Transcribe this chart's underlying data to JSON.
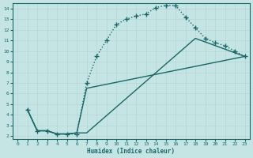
{
  "xlabel": "Humidex (Indice chaleur)",
  "bg_color": "#c5e5e5",
  "line_color": "#1a6666",
  "grid_color": "#b8d8d8",
  "xlim": [
    -0.5,
    23.5
  ],
  "ylim": [
    1.7,
    14.5
  ],
  "xticks": [
    0,
    1,
    2,
    3,
    4,
    5,
    6,
    7,
    8,
    9,
    10,
    11,
    12,
    13,
    14,
    15,
    16,
    17,
    18,
    19,
    20,
    21,
    22,
    23
  ],
  "yticks": [
    2,
    3,
    4,
    5,
    6,
    7,
    8,
    9,
    10,
    11,
    12,
    13,
    14
  ],
  "dotted_x": [
    1,
    2,
    3,
    4,
    5,
    6,
    7,
    8,
    9,
    10,
    11,
    12,
    13,
    14,
    15,
    16,
    17,
    18,
    19,
    20,
    21,
    22,
    23
  ],
  "dotted_y": [
    4.5,
    2.5,
    2.5,
    2.2,
    2.2,
    2.2,
    7.0,
    9.5,
    11.0,
    12.5,
    13.0,
    13.3,
    13.5,
    14.1,
    14.3,
    14.3,
    13.2,
    12.2,
    11.2,
    10.8,
    10.5,
    10.0,
    9.5
  ],
  "solid1_x": [
    1,
    2,
    3,
    4,
    5,
    6,
    7,
    18,
    23
  ],
  "solid1_y": [
    4.5,
    2.5,
    2.5,
    2.2,
    2.2,
    2.3,
    2.3,
    11.2,
    9.5
  ],
  "solid2_x": [
    1,
    2,
    3,
    4,
    5,
    6,
    7,
    23
  ],
  "solid2_y": [
    4.5,
    2.5,
    2.5,
    2.2,
    2.2,
    2.3,
    6.5,
    9.5
  ]
}
